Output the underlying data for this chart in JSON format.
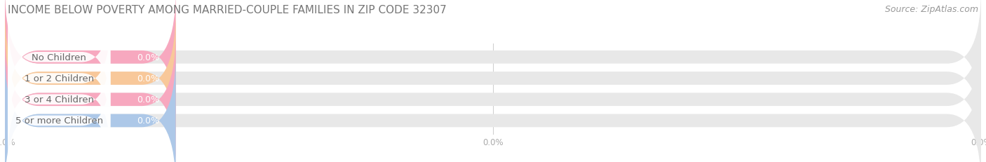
{
  "title": "INCOME BELOW POVERTY AMONG MARRIED-COUPLE FAMILIES IN ZIP CODE 32307",
  "source": "Source: ZipAtlas.com",
  "categories": [
    "No Children",
    "1 or 2 Children",
    "3 or 4 Children",
    "5 or more Children"
  ],
  "values": [
    0.0,
    0.0,
    0.0,
    0.0
  ],
  "bar_colors": [
    "#f7a8bf",
    "#f8c89a",
    "#f7a8bf",
    "#adc8e8"
  ],
  "bar_bg_color": "#e8e8e8",
  "background_color": "#ffffff",
  "xlim_data": [
    0,
    100
  ],
  "title_fontsize": 11,
  "label_fontsize": 9.5,
  "source_fontsize": 9,
  "value_fontsize": 9,
  "tick_label_color": "#aaaaaa",
  "label_text_color": "#666666",
  "value_text_color": "#ffffff",
  "title_color": "#777777",
  "source_color": "#999999"
}
